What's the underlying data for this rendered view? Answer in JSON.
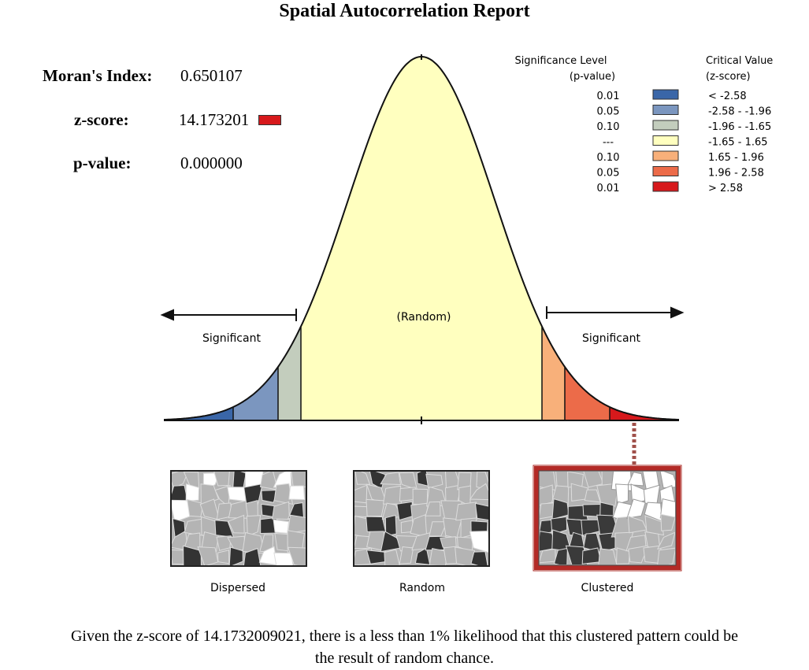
{
  "title": "Spatial Autocorrelation Report",
  "stats": {
    "morans_index_label": "Moran's Index:",
    "morans_index_value": "0.650107",
    "zscore_label": "z-score:",
    "zscore_value": "14.173201",
    "pvalue_label": "p-value:",
    "pvalue_value": "0.000000",
    "zscore_color": "#d7191c"
  },
  "legend": {
    "sig_header_line1": "Significance Level",
    "sig_header_line2": "(p-value)",
    "crit_header_line1": "Critical Value",
    "crit_header_line2": "(z-score)",
    "rows": [
      {
        "p": "0.01",
        "z": "< -2.58",
        "color": "#3a66a8"
      },
      {
        "p": "0.05",
        "z": "-2.58 - -1.96",
        "color": "#7b96bf"
      },
      {
        "p": "0.10",
        "z": "-1.96 - -1.65",
        "color": "#c3cdbd"
      },
      {
        "p": "---",
        "z": "-1.65 - 1.65",
        "color": "#ffffbf"
      },
      {
        "p": "0.10",
        "z": "1.65 - 1.96",
        "color": "#f8b07a"
      },
      {
        "p": "0.05",
        "z": "1.96 - 2.58",
        "color": "#ec6b49"
      },
      {
        "p": "0.01",
        "z": "> 2.58",
        "color": "#d7191c"
      }
    ]
  },
  "curve": {
    "center_label": "(Random)",
    "left_label": "Significant",
    "right_label": "Significant"
  },
  "patterns": [
    {
      "label": "Dispersed"
    },
    {
      "label": "Random"
    },
    {
      "label": "Clustered"
    }
  ],
  "footer": {
    "line1": "Given the z-score of 14.1732009021, there is a less than 1% likelihood that this clustered pattern could be",
    "line2": "the result of random chance."
  }
}
